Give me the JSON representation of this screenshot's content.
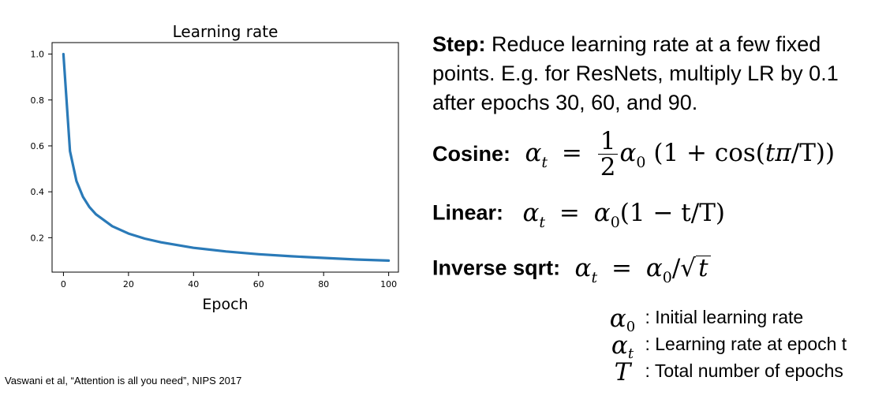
{
  "chart_data": {
    "type": "line",
    "title": "Learning rate",
    "xlabel": "Epoch",
    "ylabel": "",
    "xlim": [
      -3.5,
      103
    ],
    "ylim": [
      0.05,
      1.05
    ],
    "xticks": [
      0,
      20,
      40,
      60,
      80,
      100
    ],
    "yticks": [
      0.2,
      0.4,
      0.6,
      0.8,
      1.0
    ],
    "xtick_labels": [
      "0",
      "20",
      "40",
      "60",
      "80",
      "100"
    ],
    "ytick_labels": [
      "0.2",
      "0.4",
      "0.6",
      "0.8",
      "1.0"
    ],
    "grid": false,
    "series": [
      {
        "color": "#2a7ab8",
        "x": [
          0,
          2,
          4,
          6,
          8,
          10,
          15,
          20,
          25,
          30,
          40,
          50,
          60,
          70,
          80,
          90,
          100
        ],
        "y": [
          1.0,
          0.577,
          0.447,
          0.378,
          0.333,
          0.302,
          0.25,
          0.218,
          0.196,
          0.18,
          0.156,
          0.14,
          0.128,
          0.119,
          0.112,
          0.105,
          0.1
        ]
      }
    ]
  },
  "text": {
    "step_label": "Step:",
    "step_body": "Reduce learning rate at a few fixed points. E.g. for ResNets, multiply LR by 0.1 after epochs 30, 60, and 90.",
    "cosine_label": "Cosine:",
    "linear_label": "Linear:",
    "inverse_label": "Inverse sqrt:",
    "alpha0_desc": ": Initial learning rate",
    "alphat_desc": ": Learning rate at epoch t",
    "T_desc": ": Total number of epochs",
    "citation": "Vaswani et al, “Attention is all you need”, NIPS 2017"
  },
  "math": {
    "alpha": "α",
    "sub_t": "t",
    "sub_0": "0",
    "eq": "=",
    "one": "1",
    "two": "2",
    "cos_open": "(1 + cos(",
    "cos_t": "tπ",
    "cos_close": "/T))",
    "lin_rest": "(1 − t/T)",
    "slash": "/",
    "sqrt_sign": "√",
    "sqrt_arg": "t",
    "T": "T"
  }
}
